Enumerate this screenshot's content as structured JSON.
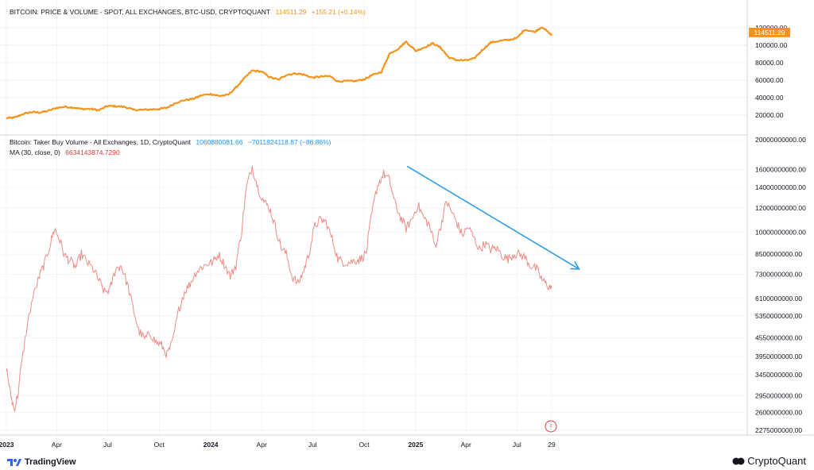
{
  "colors": {
    "price": "#f7931a",
    "volume": "#f28b82",
    "ma": "#e53935",
    "trend_arrow": "#2e9fe6",
    "axis_text": "#131722",
    "grid": "#e6e8ec",
    "price_label_bg": "#f7931a",
    "volume_legend_value": "#2196f3"
  },
  "legends": {
    "price": {
      "title": "BITCOIN: PRICE & VOLUME - SPOT, ALL EXCHANGES, BTC-USD, CRYPTOQUANT",
      "value": "114511.29",
      "change": "+155.21 (+0.14%)"
    },
    "volume": {
      "title": "Bitcoin: Taker Buy Volume - All Exchanges, 1D, CryptoQuant",
      "value": "1060880081.66",
      "change": "−7011824118.87 (−86.86%)"
    },
    "ma": {
      "title": "MA (30, close, 0)",
      "value": "6634143874.7290"
    }
  },
  "footer": {
    "left_brand": "TradingView",
    "right_brand": "CryptoQuant"
  },
  "marker_text": "!",
  "chart_data": [
    {
      "type": "line",
      "title": "BITCOIN: PRICE & VOLUME - SPOT, ALL EXCHANGES, BTC-USD, CRYPTOQUANT",
      "series": [
        {
          "name": "",
          "x": [
            "2023-01-01",
            "2023-01-15",
            "2023-02-01",
            "2023-02-15",
            "2023-03-01",
            "2023-03-15",
            "2023-04-01",
            "2023-04-15",
            "2023-05-01",
            "2023-05-15",
            "2023-06-01",
            "2023-06-15",
            "2023-07-01",
            "2023-07-15",
            "2023-08-01",
            "2023-08-15",
            "2023-09-01",
            "2023-09-15",
            "2023-10-01",
            "2023-10-15",
            "2023-11-01",
            "2023-11-15",
            "2023-12-01",
            "2023-12-15",
            "2024-01-01",
            "2024-01-15",
            "2024-02-01",
            "2024-02-15",
            "2024-03-01",
            "2024-03-15",
            "2024-04-01",
            "2024-04-15",
            "2024-05-01",
            "2024-05-15",
            "2024-06-01",
            "2024-06-15",
            "2024-07-01",
            "2024-07-15",
            "2024-08-01",
            "2024-08-15",
            "2024-09-01",
            "2024-09-15",
            "2024-10-01",
            "2024-10-15",
            "2024-11-01",
            "2024-11-15",
            "2024-12-01",
            "2024-12-15",
            "2025-01-01",
            "2025-01-15",
            "2025-02-01",
            "2025-02-15",
            "2025-03-01",
            "2025-03-15",
            "2025-04-01",
            "2025-04-15",
            "2025-05-01",
            "2025-05-15",
            "2025-06-01",
            "2025-06-15",
            "2025-07-01",
            "2025-07-15",
            "2025-08-01",
            "2025-08-15",
            "2025-09-01"
          ],
          "values": [
            16600,
            17000,
            21500,
            23500,
            23000,
            24500,
            28300,
            29500,
            28700,
            27000,
            27100,
            25500,
            30500,
            30200,
            29300,
            26200,
            26000,
            26500,
            27000,
            28500,
            34500,
            37000,
            38700,
            42500,
            44200,
            42000,
            43000,
            51500,
            62000,
            71000,
            69700,
            63500,
            60500,
            66000,
            67700,
            66300,
            62800,
            64000,
            64500,
            58500,
            59000,
            58800,
            61000,
            65500,
            69500,
            90000,
            96000,
            104000,
            93500,
            97000,
            102000,
            97000,
            86000,
            83000,
            82500,
            84500,
            95000,
            103000,
            105000,
            106000,
            108000,
            118000,
            115000,
            121000,
            111000
          ],
          "ylim": [
            10000,
            128000
          ]
        }
      ],
      "y_ticks": [
        "120000.00",
        "100000.00",
        "80000.00",
        "60000.00",
        "40000.00",
        "20000.00"
      ],
      "last_value_label": "114511.29"
    },
    {
      "type": "line",
      "title": "Bitcoin: Taker Buy Volume - All Exchanges, 1D, CryptoQuant",
      "scale": "log",
      "series": [
        {
          "name": "MA (30, close, 0)",
          "x": [
            "2023-01-01",
            "2023-01-08",
            "2023-01-15",
            "2023-01-22",
            "2023-02-01",
            "2023-02-15",
            "2023-03-01",
            "2023-03-10",
            "2023-03-20",
            "2023-03-28",
            "2023-04-05",
            "2023-04-15",
            "2023-04-25",
            "2023-05-05",
            "2023-05-15",
            "2023-05-25",
            "2023-06-05",
            "2023-06-15",
            "2023-06-25",
            "2023-07-05",
            "2023-07-15",
            "2023-07-25",
            "2023-08-05",
            "2023-08-15",
            "2023-08-25",
            "2023-09-05",
            "2023-09-15",
            "2023-09-25",
            "2023-10-05",
            "2023-10-15",
            "2023-10-25",
            "2023-11-05",
            "2023-11-15",
            "2023-11-25",
            "2023-12-05",
            "2023-12-15",
            "2023-12-25",
            "2024-01-05",
            "2024-01-15",
            "2024-01-25",
            "2024-02-05",
            "2024-02-15",
            "2024-02-25",
            "2024-03-05",
            "2024-03-15",
            "2024-03-25",
            "2024-04-05",
            "2024-04-15",
            "2024-04-25",
            "2024-05-05",
            "2024-05-15",
            "2024-05-25",
            "2024-06-05",
            "2024-06-15",
            "2024-06-25",
            "2024-07-05",
            "2024-07-15",
            "2024-07-25",
            "2024-08-05",
            "2024-08-15",
            "2024-08-25",
            "2024-09-05",
            "2024-09-15",
            "2024-09-25",
            "2024-10-05",
            "2024-10-15",
            "2024-10-25",
            "2024-11-05",
            "2024-11-15",
            "2024-11-25",
            "2024-12-05",
            "2024-12-15",
            "2024-12-25",
            "2025-01-05",
            "2025-01-15",
            "2025-01-25",
            "2025-02-05",
            "2025-02-15",
            "2025-02-25",
            "2025-03-05",
            "2025-03-15",
            "2025-03-25",
            "2025-04-05",
            "2025-04-15",
            "2025-04-25",
            "2025-05-05",
            "2025-05-15",
            "2025-05-25",
            "2025-06-05",
            "2025-06-15",
            "2025-06-25",
            "2025-07-05",
            "2025-07-15",
            "2025-07-25",
            "2025-08-05",
            "2025-08-15",
            "2025-08-25",
            "2025-09-01"
          ],
          "values": [
            3650000000,
            3000000000,
            2650000000,
            3000000000,
            4200000000,
            5900000000,
            7200000000,
            7900000000,
            9100000000,
            10300000000,
            9600000000,
            8400000000,
            8100000000,
            7700000000,
            8500000000,
            8000000000,
            7600000000,
            7000000000,
            6400000000,
            6500000000,
            7600000000,
            7800000000,
            6800000000,
            5700000000,
            4800000000,
            4500000000,
            4700000000,
            4400000000,
            4300000000,
            4000000000,
            4400000000,
            5600000000,
            6400000000,
            6800000000,
            7400000000,
            7700000000,
            7900000000,
            8000000000,
            8500000000,
            7900000000,
            7200000000,
            7800000000,
            10000000000,
            14000000000,
            16400000000,
            14000000000,
            12600000000,
            12000000000,
            10500000000,
            9000000000,
            8500000000,
            7200000000,
            6800000000,
            7500000000,
            8600000000,
            10500000000,
            11000000000,
            10800000000,
            9500000000,
            8200000000,
            8000000000,
            8000000000,
            8100000000,
            8200000000,
            8600000000,
            11500000000,
            14200000000,
            15500000000,
            14800000000,
            12400000000,
            11200000000,
            10300000000,
            11000000000,
            12300000000,
            11200000000,
            10600000000,
            9000000000,
            10500000000,
            12600000000,
            11800000000,
            10800000000,
            9800000000,
            10400000000,
            9600000000,
            8800000000,
            9200000000,
            8800000000,
            8900000000,
            8400000000,
            8200000000,
            8500000000,
            8500000000,
            8300000000,
            7800000000,
            7600000000,
            7000000000,
            6700000000,
            6600000000
          ],
          "ylim": [
            2275000000,
            20000000000
          ]
        }
      ],
      "y_ticks": [
        "20000000000.00",
        "16000000000.00",
        "14000000000.00",
        "12000000000.00",
        "10000000000.00",
        "8500000000.00",
        "7300000000.00",
        "6100000000.00",
        "5350000000.00",
        "4550000000.00",
        "3950000000.00",
        "3450000000.00",
        "2950000000.00",
        "2600000000.00",
        "2275000000.00"
      ],
      "trend_arrow": {
        "from": [
          "2024-12-17",
          16400000000
        ],
        "to": [
          "2025-10-20",
          7600000000
        ]
      }
    }
  ],
  "x_axis": {
    "ticks": [
      {
        "label": "2023",
        "date": "2023-01-01",
        "bold": true
      },
      {
        "label": "Apr",
        "date": "2023-04-01",
        "bold": false
      },
      {
        "label": "Jul",
        "date": "2023-07-01",
        "bold": false
      },
      {
        "label": "Oct",
        "date": "2023-10-01",
        "bold": false
      },
      {
        "label": "2024",
        "date": "2024-01-01",
        "bold": true
      },
      {
        "label": "Apr",
        "date": "2024-04-01",
        "bold": false
      },
      {
        "label": "Jul",
        "date": "2024-07-01",
        "bold": false
      },
      {
        "label": "Oct",
        "date": "2024-10-01",
        "bold": false
      },
      {
        "label": "2025",
        "date": "2025-01-01",
        "bold": true
      },
      {
        "label": "Apr",
        "date": "2025-04-01",
        "bold": false
      },
      {
        "label": "Jul",
        "date": "2025-07-01",
        "bold": false
      },
      {
        "label": "29",
        "date": "2025-09-01",
        "bold": false
      }
    ]
  }
}
